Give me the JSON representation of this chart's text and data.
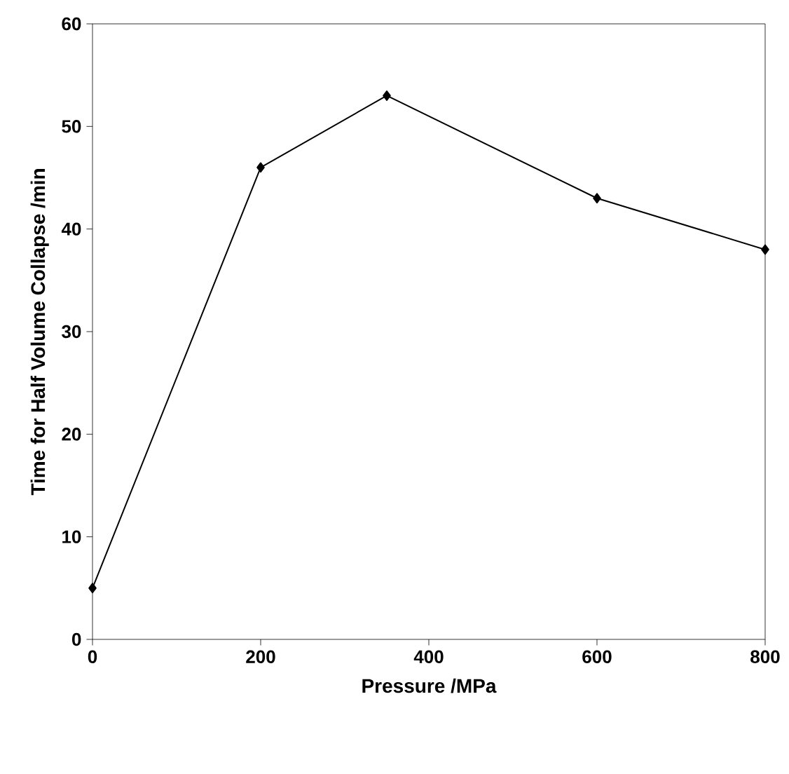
{
  "chart_data": {
    "type": "line",
    "xlabel": "Pressure /MPa",
    "ylabel": "Time for Half Volume Collapse /min",
    "x": [
      0,
      200,
      350,
      600,
      800
    ],
    "series": [
      {
        "color": "#000000",
        "values": [
          5,
          46,
          53,
          43,
          38
        ]
      }
    ],
    "xlim": [
      0,
      800
    ],
    "ylim": [
      0,
      60
    ],
    "xticks": [
      0,
      200,
      400,
      600,
      800
    ],
    "yticks": [
      0,
      10,
      20,
      30,
      40,
      50,
      60
    ],
    "marker": "diamond",
    "line_style": "solid"
  }
}
